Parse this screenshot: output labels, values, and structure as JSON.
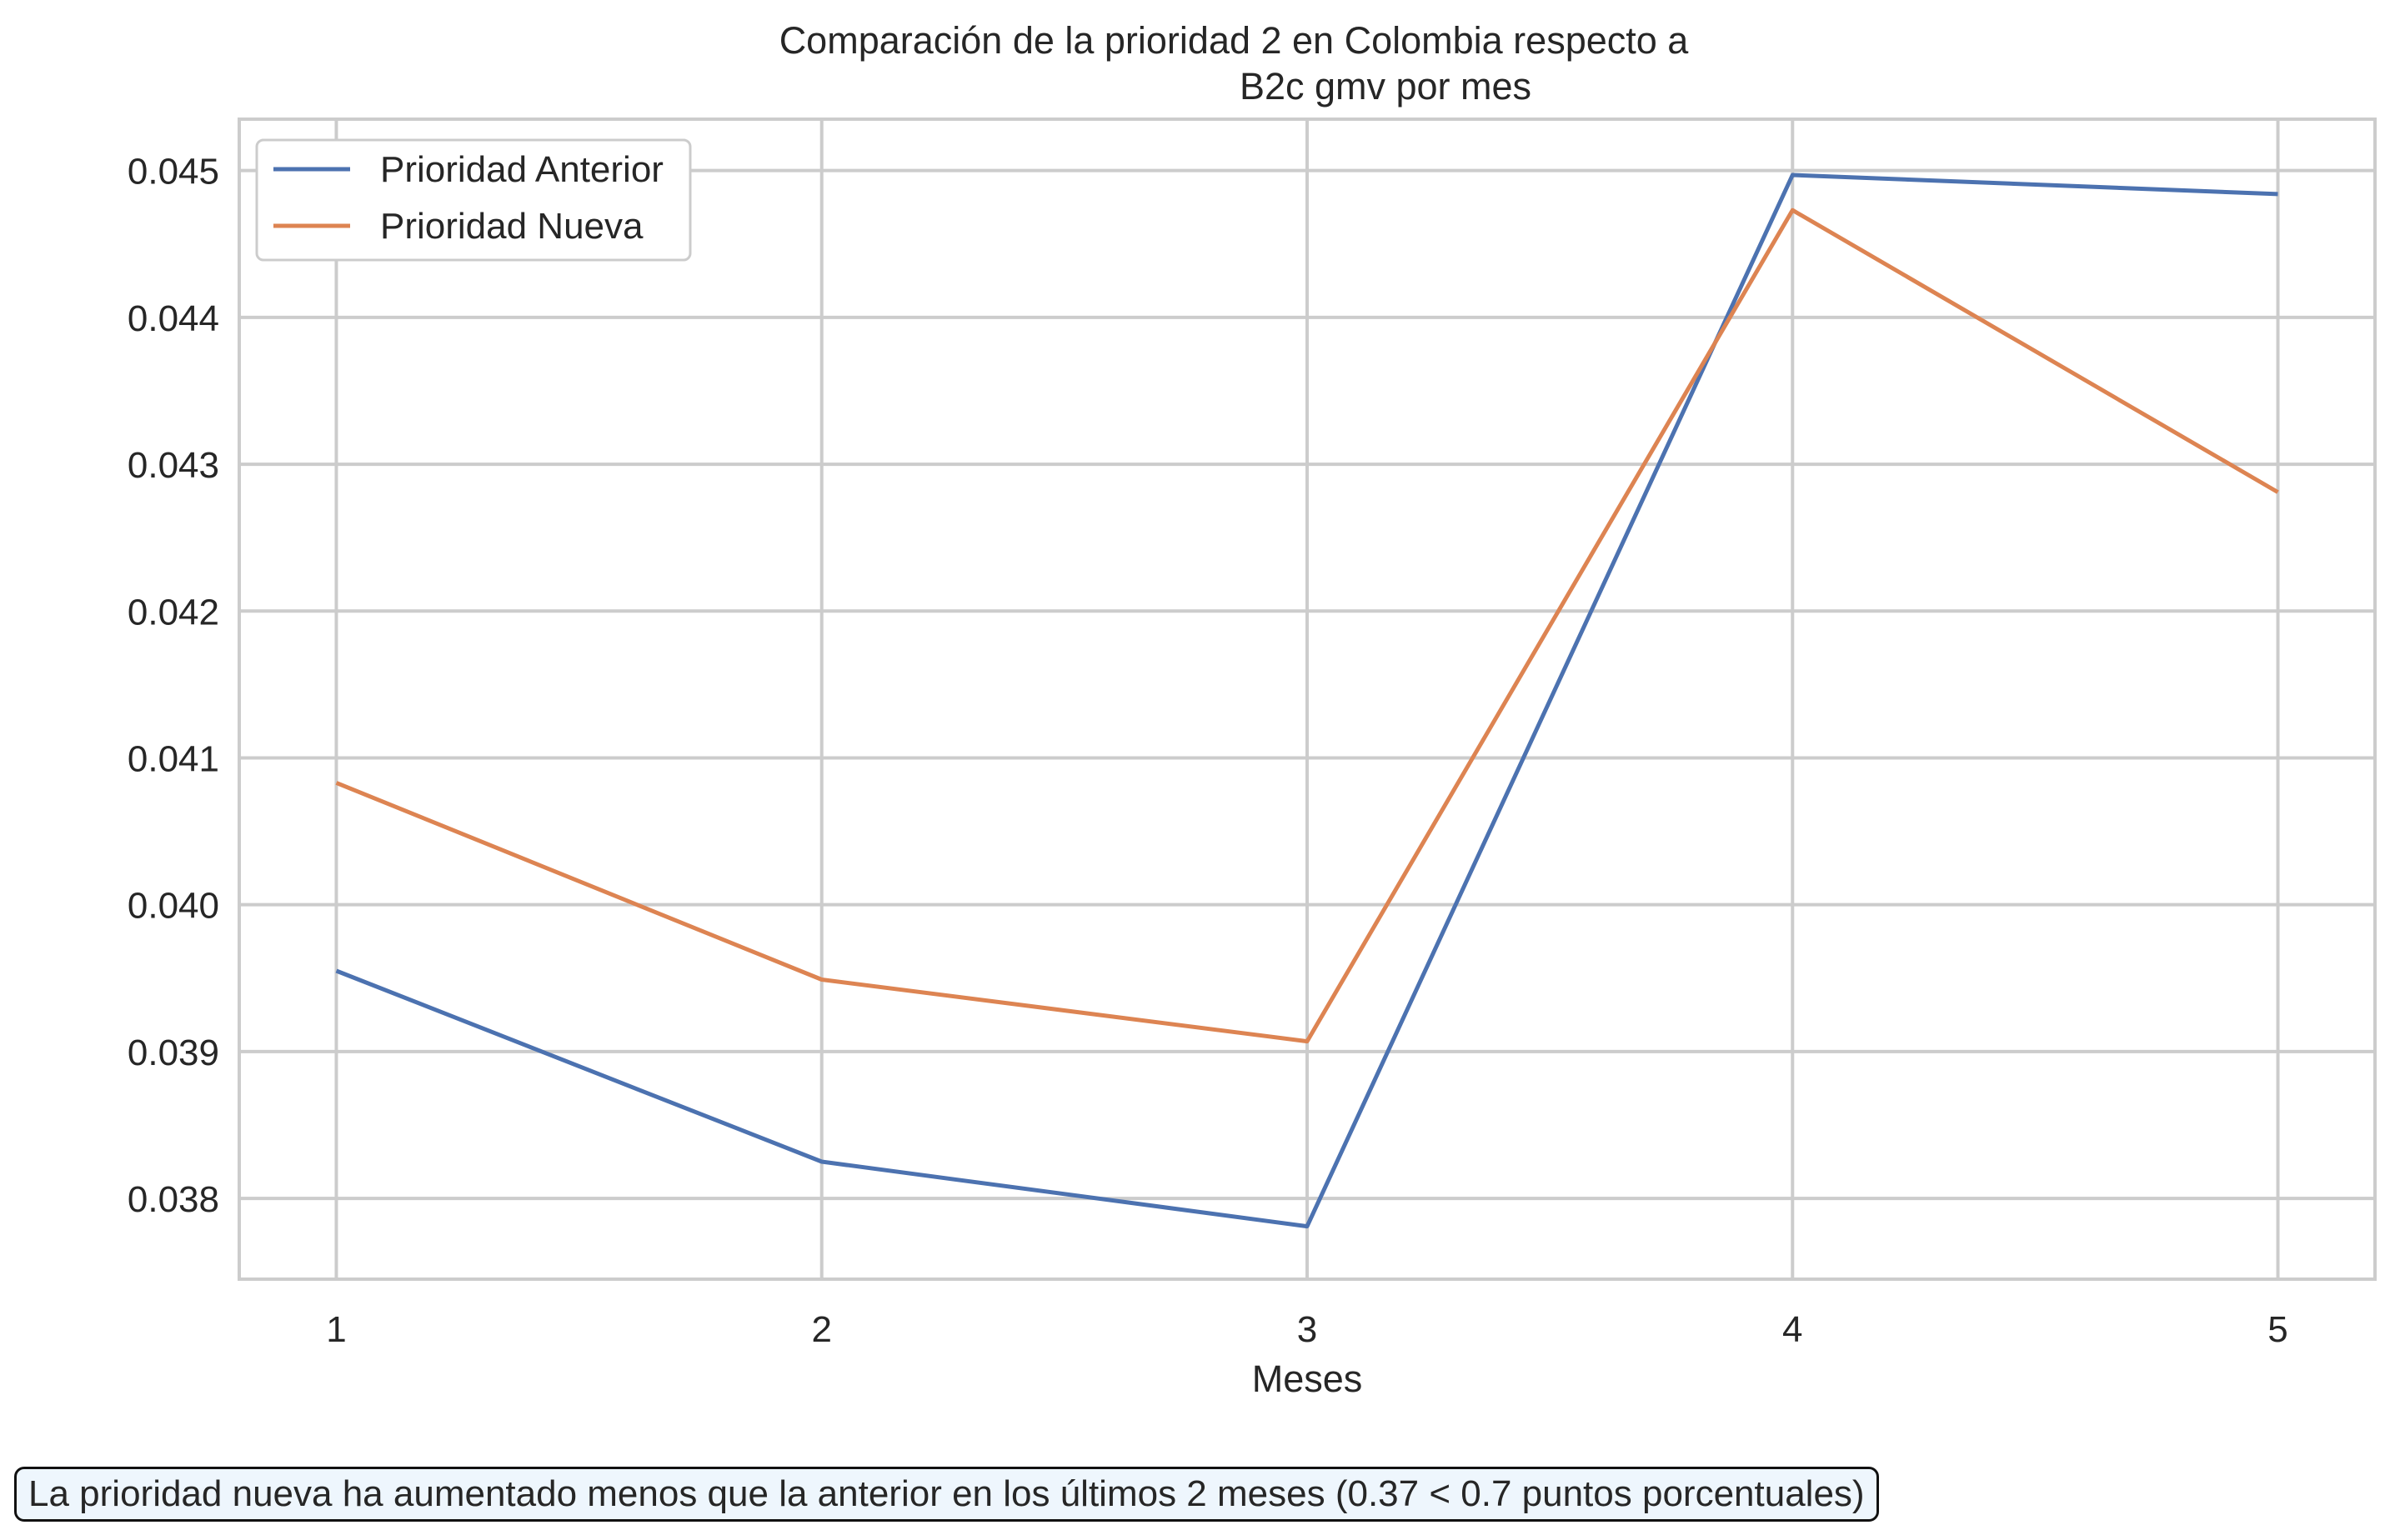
{
  "chart_data": {
    "type": "line",
    "title_line1": "Comparación de la prioridad 2 en Colombia respecto a",
    "title_line2": "B2c gmv por mes",
    "xlabel": "Meses",
    "ylabel": "",
    "x": [
      1,
      2,
      3,
      4,
      5
    ],
    "xlim": [
      0.8,
      5.2
    ],
    "ylim": [
      0.03745,
      0.04535
    ],
    "yticks": [
      0.038,
      0.039,
      0.04,
      0.041,
      0.042,
      0.043,
      0.044,
      0.045
    ],
    "ytick_labels": [
      "0.038",
      "0.039",
      "0.040",
      "0.041",
      "0.042",
      "0.043",
      "0.044",
      "0.045"
    ],
    "xtick_labels": [
      "1",
      "2",
      "3",
      "4",
      "5"
    ],
    "grid": true,
    "legend_position": "top-left",
    "series": [
      {
        "name": "Prioridad Anterior",
        "color": "#4c72b0",
        "values": [
          0.03955,
          0.03825,
          0.03781,
          0.04497,
          0.04484
        ]
      },
      {
        "name": "Prioridad Nueva",
        "color": "#dd8452",
        "values": [
          0.04083,
          0.03949,
          0.03907,
          0.04473,
          0.04281
        ]
      }
    ],
    "annotation": "La prioridad nueva ha aumentado menos que la anterior en los últimos 2 meses (0.37 < 0.7 puntos porcentuales)"
  }
}
